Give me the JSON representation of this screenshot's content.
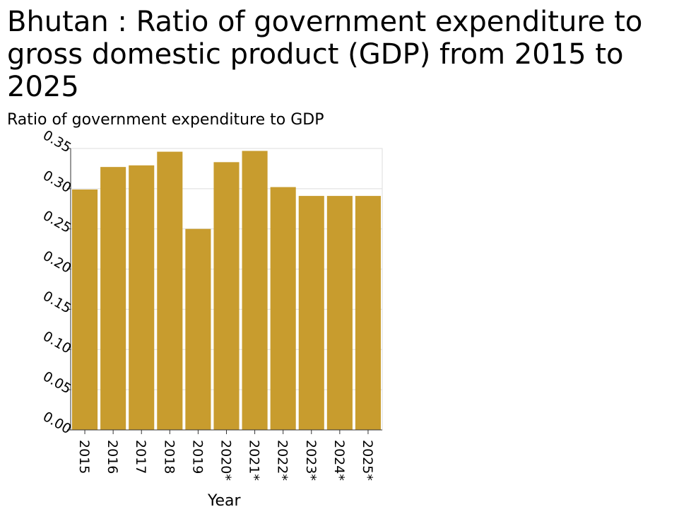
{
  "chart_data": {
    "type": "bar",
    "title": "Bhutan : Ratio of government expenditure to gross domestic product (GDP) from 2015 to 2025",
    "ylabel": "Ratio of government expenditure to GDP",
    "xlabel": "Year",
    "categories": [
      "2015",
      "2016",
      "2017",
      "2018",
      "2019",
      "2020*",
      "2021*",
      "2022*",
      "2023*",
      "2024*",
      "2025*"
    ],
    "values": [
      0.299,
      0.327,
      0.329,
      0.346,
      0.25,
      0.333,
      0.347,
      0.302,
      0.291,
      0.291,
      0.291
    ],
    "ylim": [
      0,
      0.35
    ],
    "yticks": [
      "0.00",
      "0.05",
      "0.10",
      "0.15",
      "0.20",
      "0.25",
      "0.30",
      "0.35"
    ],
    "bar_color": "#c89c2e",
    "grid": true
  }
}
